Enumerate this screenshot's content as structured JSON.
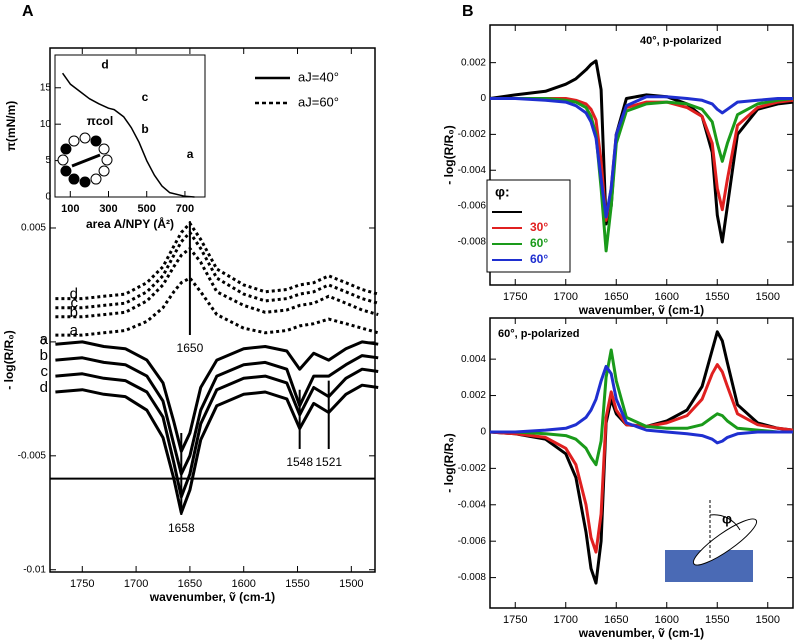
{
  "chart_data": [
    {
      "type": "line",
      "panel": "A",
      "xlabel": "wavenumber, ṽ (cm-1)",
      "ylabel": "- log(R/R₀)",
      "x": [
        1775,
        1750,
        1730,
        1710,
        1690,
        1675,
        1665,
        1658,
        1650,
        1640,
        1625,
        1600,
        1580,
        1560,
        1548,
        1535,
        1521,
        1505,
        1490,
        1475
      ],
      "xlim": [
        1780,
        1478
      ],
      "xticks": [
        1750,
        1700,
        1650,
        1600,
        1550,
        1500
      ],
      "ylim": [
        -0.0101,
        0.0129
      ],
      "yticks": [
        0.005,
        0,
        -0.005,
        -0.01
      ],
      "series": [
        {
          "label": "d",
          "style": "dashed",
          "color": "#000",
          "values": [
            0.0019,
            0.0019,
            0.002,
            0.0021,
            0.0026,
            0.0033,
            0.0042,
            0.0048,
            0.0052,
            0.0045,
            0.0032,
            0.0025,
            0.0022,
            0.0023,
            0.0025,
            0.0026,
            0.0029,
            0.0026,
            0.0023,
            0.0021
          ]
        },
        {
          "label": "c",
          "style": "dashed",
          "color": "#000",
          "values": [
            0.0015,
            0.0015,
            0.0016,
            0.0017,
            0.0022,
            0.0029,
            0.0038,
            0.0044,
            0.0048,
            0.0041,
            0.0028,
            0.0021,
            0.0018,
            0.0019,
            0.0021,
            0.0022,
            0.0025,
            0.0022,
            0.0019,
            0.0017
          ]
        },
        {
          "label": "b",
          "style": "dashed",
          "color": "#000",
          "values": [
            0.0011,
            0.0011,
            0.0012,
            0.0013,
            0.0018,
            0.0025,
            0.0033,
            0.0038,
            0.0041,
            0.0035,
            0.0022,
            0.0016,
            0.0013,
            0.0014,
            0.0016,
            0.0017,
            0.002,
            0.0017,
            0.0014,
            0.0012
          ]
        },
        {
          "label": "a",
          "style": "dashed",
          "color": "#000",
          "values": [
            0.0003,
            0.0003,
            0.0004,
            0.0005,
            0.0009,
            0.0015,
            0.0022,
            0.0026,
            0.0028,
            0.0022,
            0.0012,
            0.0006,
            0.0004,
            0.0005,
            0.0007,
            0.0008,
            0.001,
            0.0008,
            0.0006,
            0.0004
          ]
        },
        {
          "label": "a",
          "style": "solid",
          "color": "#000",
          "values": [
            -0.0001,
            0,
            -0.0002,
            -0.0003,
            -0.0008,
            -0.0018,
            -0.0035,
            -0.0048,
            -0.004,
            -0.002,
            -0.0008,
            -0.0003,
            -0.0002,
            -0.0004,
            -0.0012,
            -0.0005,
            -0.0008,
            -0.0003,
            0,
            -0.0001
          ]
        },
        {
          "label": "b",
          "style": "solid",
          "color": "#000",
          "values": [
            -0.0008,
            -0.0007,
            -0.0009,
            -0.001,
            -0.0015,
            -0.0026,
            -0.0045,
            -0.0058,
            -0.005,
            -0.003,
            -0.0015,
            -0.001,
            -0.0009,
            -0.0012,
            -0.0028,
            -0.0015,
            -0.0015,
            -0.001,
            -0.0006,
            -0.0007
          ]
        },
        {
          "label": "c",
          "style": "solid",
          "color": "#000",
          "values": [
            -0.0015,
            -0.0014,
            -0.0016,
            -0.0017,
            -0.0022,
            -0.0033,
            -0.0053,
            -0.0068,
            -0.0058,
            -0.0036,
            -0.0021,
            -0.0016,
            -0.0015,
            -0.0018,
            -0.0032,
            -0.002,
            -0.0024,
            -0.0016,
            -0.0012,
            -0.0013
          ]
        },
        {
          "label": "d",
          "style": "solid",
          "color": "#000",
          "values": [
            -0.0022,
            -0.0021,
            -0.0023,
            -0.0024,
            -0.003,
            -0.0042,
            -0.006,
            -0.0075,
            -0.0065,
            -0.0043,
            -0.0028,
            -0.0023,
            -0.0022,
            -0.0025,
            -0.0038,
            -0.0027,
            -0.0031,
            -0.0023,
            -0.0019,
            -0.002
          ]
        }
      ],
      "legend": [
        {
          "label": "aJ=40°",
          "style": "solid"
        },
        {
          "label": "aJ=60°",
          "style": "dashed"
        }
      ],
      "hline": -0.006,
      "annotations": [
        {
          "text": "1650",
          "x": 1650,
          "y1": 0.0053,
          "y2": 0.0003
        },
        {
          "text": "1658",
          "x": 1658,
          "y1": -0.004,
          "y2": -0.0076
        },
        {
          "text": "1548",
          "x": 1548,
          "y1": -0.0021,
          "y2": -0.0047
        },
        {
          "text": "1521",
          "x": 1521,
          "y1": -0.0017,
          "y2": -0.0047
        }
      ]
    },
    {
      "type": "line",
      "xlabel": "area A/NPY (Å²)",
      "ylabel": "π(mN/m)",
      "x": [
        60,
        100,
        150,
        200,
        250,
        300,
        330,
        380,
        420,
        460,
        500,
        540,
        580,
        620,
        700,
        750
      ],
      "xlim": [
        20,
        805
      ],
      "xticks": [
        100,
        300,
        500,
        700
      ],
      "ylim": [
        0,
        19.5
      ],
      "yticks": [
        0,
        5,
        10,
        15
      ],
      "series": [
        {
          "style": "solid",
          "color": "#000",
          "values": [
            17,
            15.5,
            14.5,
            13.5,
            12.8,
            12.2,
            12,
            11,
            9.5,
            7.5,
            5,
            3,
            1.5,
            0.6,
            0.1,
            0
          ]
        }
      ],
      "annotations": [
        {
          "text": "d",
          "x": 282,
          "y": 18.1
        },
        {
          "text": "c",
          "x": 491,
          "y": 13.6
        },
        {
          "text": "b",
          "x": 491,
          "y": 9.2
        },
        {
          "text": "a",
          "x": 727,
          "y": 5.8
        },
        {
          "text": "πcol",
          "x": 255,
          "y": 10.3
        }
      ]
    },
    {
      "type": "line",
      "panel": "B",
      "title": "40°, p-polarized",
      "xlabel": "wavenumber, ṽ (cm-1)",
      "ylabel": "- log(R/R₀)",
      "x": [
        1775,
        1750,
        1720,
        1700,
        1690,
        1680,
        1675,
        1670,
        1665,
        1660,
        1655,
        1650,
        1640,
        1620,
        1600,
        1580,
        1565,
        1555,
        1550,
        1545,
        1540,
        1530,
        1510,
        1490,
        1475
      ],
      "xlim": [
        1775,
        1475
      ],
      "xticks": [
        1750,
        1700,
        1650,
        1600,
        1550,
        1500
      ],
      "ylim": [
        -0.0104,
        0.0041
      ],
      "yticks": [
        0.002,
        0,
        -0.002,
        -0.004,
        -0.006,
        -0.008
      ],
      "legend_title": "φ:",
      "series": [
        {
          "color": "#000000",
          "values": [
            0,
            0.0002,
            0.0004,
            0.0008,
            0.0011,
            0.0016,
            0.0019,
            0.0021,
            0.0005,
            -0.007,
            -0.006,
            -0.002,
            0,
            0.0002,
            0.0001,
            -0.0003,
            -0.001,
            -0.003,
            -0.0065,
            -0.008,
            -0.006,
            -0.002,
            -0.0006,
            -0.0003,
            -0.0002
          ]
        },
        {
          "name": "30°",
          "color": "#e02020",
          "values": [
            0,
            0,
            0,
            0,
            -0.0001,
            -0.0003,
            -0.0006,
            -0.0012,
            -0.0035,
            -0.0068,
            -0.005,
            -0.002,
            -0.0005,
            -0.0002,
            -0.0002,
            -0.0005,
            -0.001,
            -0.0025,
            -0.005,
            -0.0062,
            -0.0045,
            -0.0015,
            -0.0005,
            -0.0002,
            -0.0001
          ]
        },
        {
          "name": "60°",
          "color": "#1a9a1a",
          "values": [
            0,
            0,
            0,
            -0.0001,
            -0.0002,
            -0.0005,
            -0.001,
            -0.002,
            -0.005,
            -0.0085,
            -0.006,
            -0.0025,
            -0.0007,
            -0.0003,
            -0.0002,
            -0.0003,
            -0.0006,
            -0.0013,
            -0.0025,
            -0.0035,
            -0.0025,
            -0.0009,
            -0.0003,
            -0.0001,
            0
          ]
        },
        {
          "name": "60°",
          "color": "#1f2fd0",
          "values": [
            0,
            0,
            -0.0001,
            -0.0002,
            -0.0004,
            -0.0008,
            -0.0013,
            -0.0022,
            -0.0045,
            -0.0066,
            -0.005,
            -0.002,
            -0.0004,
            0.0001,
            0.0001,
            0,
            -0.0001,
            -0.0003,
            -0.0006,
            -0.0008,
            -0.0006,
            -0.0002,
            -0.0001,
            0,
            0
          ]
        }
      ]
    },
    {
      "type": "line",
      "title": "60°, p-polarized",
      "xlabel": "wavenumber, ṽ (cm-1)",
      "ylabel": "- log(R/R₀)",
      "x": [
        1775,
        1750,
        1720,
        1700,
        1690,
        1680,
        1675,
        1670,
        1665,
        1660,
        1655,
        1650,
        1640,
        1620,
        1600,
        1580,
        1565,
        1555,
        1550,
        1545,
        1540,
        1530,
        1510,
        1490,
        1475
      ],
      "xlim": [
        1775,
        1475
      ],
      "xticks": [
        1750,
        1700,
        1650,
        1600,
        1550,
        1500
      ],
      "ylim": [
        -0.00967,
        0.00626
      ],
      "yticks": [
        0.004,
        0.002,
        0,
        -0.002,
        -0.004,
        -0.006,
        -0.008
      ],
      "inset_label": "φ",
      "series": [
        {
          "color": "#000000",
          "values": [
            0,
            -0.0001,
            -0.0004,
            -0.0012,
            -0.0025,
            -0.0055,
            -0.0075,
            -0.0083,
            -0.006,
            0.0005,
            0.0018,
            0.001,
            0.0004,
            0.0003,
            0.0006,
            0.0012,
            0.0025,
            0.0045,
            0.0055,
            0.005,
            0.0038,
            0.0015,
            0.0005,
            0.0002,
            0.0001
          ]
        },
        {
          "color": "#e02020",
          "values": [
            0,
            -0.0001,
            -0.0003,
            -0.0009,
            -0.0018,
            -0.004,
            -0.0058,
            -0.0066,
            -0.0045,
            0.0008,
            0.0022,
            0.0012,
            0.0004,
            0.0003,
            0.0005,
            0.0009,
            0.0018,
            0.0032,
            0.0037,
            0.0033,
            0.0025,
            0.001,
            0.0004,
            0.0002,
            0.0001
          ]
        },
        {
          "color": "#1a9a1a",
          "values": [
            0,
            0,
            -0.0001,
            -0.0002,
            -0.0004,
            -0.0009,
            -0.0014,
            -0.0018,
            -0.0005,
            0.003,
            0.0045,
            0.0028,
            0.0008,
            0.0003,
            0.0002,
            0.0002,
            0.0004,
            0.0008,
            0.001,
            0.0009,
            0.0006,
            0.0002,
            0.0001,
            0,
            0
          ]
        },
        {
          "color": "#1f2fd0",
          "values": [
            0,
            0,
            0.0001,
            0.0002,
            0.0004,
            0.0008,
            0.0012,
            0.0018,
            0.0028,
            0.0036,
            0.0032,
            0.0018,
            0.0005,
            0.0001,
            0,
            -0.0001,
            -0.0002,
            -0.0004,
            -0.0006,
            -0.0005,
            -0.0003,
            -0.0001,
            0,
            0,
            0
          ]
        }
      ]
    }
  ]
}
